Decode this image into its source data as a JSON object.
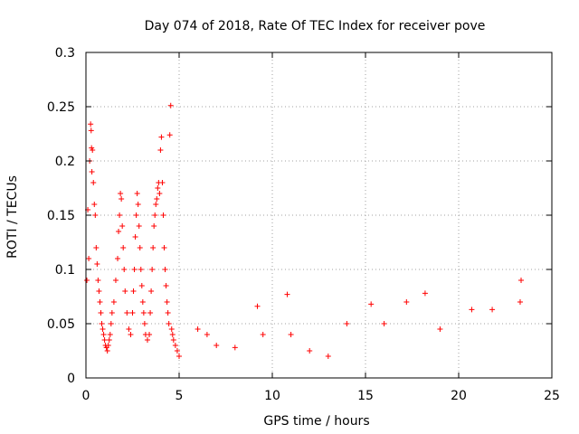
{
  "chart_data": {
    "type": "scatter",
    "title": "Day 074 of 2018, Rate Of TEC Index for receiver pove",
    "xlabel": "GPS time / hours",
    "ylabel": "ROTI / TECUs",
    "xlim": [
      0,
      25
    ],
    "ylim": [
      0,
      0.3
    ],
    "x_ticks": [
      0,
      5,
      10,
      15,
      20,
      25
    ],
    "x_tick_labels": [
      "0",
      "5",
      "10",
      "15",
      "20",
      "25"
    ],
    "y_ticks": [
      0,
      0.05,
      0.1,
      0.15,
      0.2,
      0.25,
      0.3
    ],
    "y_tick_labels": [
      "0",
      "0.05",
      "0.1",
      "0.15",
      "0.2",
      "0.25",
      "0.3"
    ],
    "grid": true,
    "marker": "plus",
    "marker_color": "#ff0000",
    "series": [
      {
        "name": "ROTI",
        "points": [
          [
            0.05,
            0.09
          ],
          [
            0.1,
            0.155
          ],
          [
            0.15,
            0.11
          ],
          [
            0.2,
            0.2
          ],
          [
            0.25,
            0.234
          ],
          [
            0.28,
            0.228
          ],
          [
            0.3,
            0.212
          ],
          [
            0.32,
            0.19
          ],
          [
            0.35,
            0.21
          ],
          [
            0.4,
            0.18
          ],
          [
            0.45,
            0.16
          ],
          [
            0.5,
            0.15
          ],
          [
            0.55,
            0.12
          ],
          [
            0.6,
            0.105
          ],
          [
            0.65,
            0.09
          ],
          [
            0.7,
            0.08
          ],
          [
            0.75,
            0.07
          ],
          [
            0.8,
            0.06
          ],
          [
            0.85,
            0.05
          ],
          [
            0.9,
            0.045
          ],
          [
            0.95,
            0.04
          ],
          [
            1.0,
            0.035
          ],
          [
            1.05,
            0.03
          ],
          [
            1.1,
            0.028
          ],
          [
            1.15,
            0.025
          ],
          [
            1.2,
            0.03
          ],
          [
            1.25,
            0.035
          ],
          [
            1.3,
            0.04
          ],
          [
            1.35,
            0.05
          ],
          [
            1.4,
            0.06
          ],
          [
            1.5,
            0.07
          ],
          [
            1.6,
            0.09
          ],
          [
            1.7,
            0.11
          ],
          [
            1.75,
            0.135
          ],
          [
            1.8,
            0.15
          ],
          [
            1.85,
            0.17
          ],
          [
            1.9,
            0.165
          ],
          [
            1.95,
            0.14
          ],
          [
            2.0,
            0.12
          ],
          [
            2.05,
            0.1
          ],
          [
            2.1,
            0.08
          ],
          [
            2.2,
            0.06
          ],
          [
            2.3,
            0.045
          ],
          [
            2.4,
            0.04
          ],
          [
            2.5,
            0.06
          ],
          [
            2.55,
            0.08
          ],
          [
            2.6,
            0.1
          ],
          [
            2.65,
            0.13
          ],
          [
            2.7,
            0.15
          ],
          [
            2.75,
            0.17
          ],
          [
            2.8,
            0.16
          ],
          [
            2.85,
            0.14
          ],
          [
            2.9,
            0.12
          ],
          [
            2.95,
            0.1
          ],
          [
            3.0,
            0.085
          ],
          [
            3.05,
            0.07
          ],
          [
            3.1,
            0.06
          ],
          [
            3.15,
            0.05
          ],
          [
            3.2,
            0.04
          ],
          [
            3.3,
            0.035
          ],
          [
            3.4,
            0.04
          ],
          [
            3.45,
            0.06
          ],
          [
            3.5,
            0.08
          ],
          [
            3.55,
            0.1
          ],
          [
            3.6,
            0.12
          ],
          [
            3.65,
            0.14
          ],
          [
            3.7,
            0.15
          ],
          [
            3.75,
            0.16
          ],
          [
            3.8,
            0.165
          ],
          [
            3.85,
            0.175
          ],
          [
            3.9,
            0.18
          ],
          [
            3.95,
            0.17
          ],
          [
            4.0,
            0.21
          ],
          [
            4.05,
            0.222
          ],
          [
            4.1,
            0.18
          ],
          [
            4.15,
            0.15
          ],
          [
            4.2,
            0.12
          ],
          [
            4.25,
            0.1
          ],
          [
            4.3,
            0.085
          ],
          [
            4.35,
            0.07
          ],
          [
            4.4,
            0.06
          ],
          [
            4.45,
            0.05
          ],
          [
            4.5,
            0.224
          ],
          [
            4.55,
            0.251
          ],
          [
            4.6,
            0.045
          ],
          [
            4.65,
            0.04
          ],
          [
            4.7,
            0.035
          ],
          [
            4.8,
            0.03
          ],
          [
            4.9,
            0.025
          ],
          [
            5.0,
            0.02
          ],
          [
            9.2,
            0.066
          ],
          [
            10.8,
            0.077
          ],
          [
            15.3,
            0.068
          ],
          [
            17.2,
            0.07
          ],
          [
            18.2,
            0.078
          ],
          [
            23.35,
            0.09
          ],
          [
            23.3,
            0.07
          ],
          [
            21.8,
            0.063
          ],
          [
            20.7,
            0.063
          ],
          [
            14.0,
            0.05
          ],
          [
            6.0,
            0.045
          ],
          [
            6.5,
            0.04
          ],
          [
            7.0,
            0.03
          ],
          [
            8.0,
            0.028
          ],
          [
            9.5,
            0.04
          ],
          [
            11.0,
            0.04
          ],
          [
            12.0,
            0.025
          ],
          [
            13.0,
            0.02
          ],
          [
            16.0,
            0.05
          ],
          [
            19.0,
            0.045
          ]
        ]
      }
    ]
  }
}
